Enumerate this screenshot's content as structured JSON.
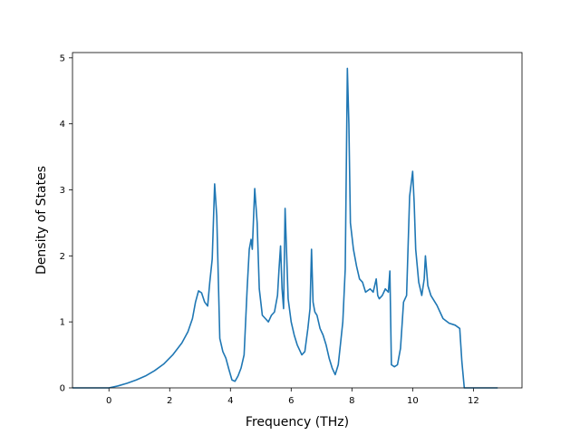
{
  "chart_data": {
    "type": "line",
    "title": "",
    "xlabel": "Frequency (THz)",
    "ylabel": "Density of States",
    "xlim": [
      -1.2,
      13.6
    ],
    "ylim": [
      0,
      5.08
    ],
    "xticks": [
      0,
      2,
      4,
      6,
      8,
      10,
      12
    ],
    "yticks": [
      0,
      1,
      2,
      3,
      4,
      5
    ],
    "grid": false,
    "legend": "none",
    "line_color": "#1f77b4",
    "series": [
      {
        "x": [
          -1.2,
          -0.6,
          0.0,
          0.3,
          0.6,
          0.9,
          1.2,
          1.5,
          1.8,
          2.1,
          2.4,
          2.6,
          2.75,
          2.85,
          2.95,
          3.05,
          3.15,
          3.25,
          3.32,
          3.4,
          3.48,
          3.55,
          3.65,
          3.75,
          3.85,
          3.95,
          4.05,
          4.15,
          4.25,
          4.35,
          4.45,
          4.55,
          4.62,
          4.68,
          4.72,
          4.8,
          4.88,
          4.95,
          5.05,
          5.15,
          5.25,
          5.35,
          5.45,
          5.55,
          5.6,
          5.65,
          5.7,
          5.75,
          5.8,
          5.9,
          6.0,
          6.1,
          6.2,
          6.35,
          6.45,
          6.55,
          6.62,
          6.67,
          6.72,
          6.78,
          6.85,
          6.95,
          7.05,
          7.15,
          7.25,
          7.35,
          7.45,
          7.55,
          7.62,
          7.7,
          7.78,
          7.85,
          7.9,
          7.95,
          8.05,
          8.15,
          8.25,
          8.35,
          8.45,
          8.6,
          8.7,
          8.8,
          8.85,
          8.9,
          9.0,
          9.1,
          9.2,
          9.25,
          9.3,
          9.4,
          9.5,
          9.6,
          9.7,
          9.8,
          9.9,
          10.0,
          10.05,
          10.1,
          10.2,
          10.3,
          10.38,
          10.42,
          10.5,
          10.6,
          10.8,
          11.0,
          11.2,
          11.4,
          11.55,
          11.62,
          11.7,
          11.8,
          12.0,
          12.4,
          12.8
        ],
        "values": [
          0.0,
          0.0,
          0.0,
          0.03,
          0.07,
          0.12,
          0.18,
          0.26,
          0.36,
          0.5,
          0.68,
          0.85,
          1.05,
          1.3,
          1.47,
          1.44,
          1.3,
          1.24,
          1.6,
          1.95,
          3.09,
          2.6,
          0.75,
          0.55,
          0.45,
          0.28,
          0.12,
          0.1,
          0.18,
          0.3,
          0.5,
          1.5,
          2.1,
          2.25,
          2.1,
          3.02,
          2.5,
          1.5,
          1.1,
          1.05,
          1.0,
          1.1,
          1.15,
          1.4,
          1.8,
          2.15,
          1.5,
          1.2,
          2.72,
          1.35,
          1.0,
          0.8,
          0.65,
          0.5,
          0.55,
          0.9,
          1.2,
          2.1,
          1.3,
          1.15,
          1.1,
          0.9,
          0.8,
          0.65,
          0.45,
          0.3,
          0.2,
          0.35,
          0.65,
          1.0,
          1.8,
          4.84,
          4.0,
          2.5,
          2.1,
          1.85,
          1.65,
          1.6,
          1.45,
          1.5,
          1.45,
          1.65,
          1.4,
          1.35,
          1.4,
          1.5,
          1.45,
          1.77,
          0.35,
          0.32,
          0.35,
          0.6,
          1.3,
          1.4,
          2.9,
          3.28,
          2.8,
          2.1,
          1.6,
          1.4,
          1.65,
          2.0,
          1.55,
          1.4,
          1.25,
          1.05,
          0.98,
          0.95,
          0.9,
          0.4,
          0.0,
          0.0,
          0.0,
          0.0,
          0.0
        ]
      }
    ]
  }
}
